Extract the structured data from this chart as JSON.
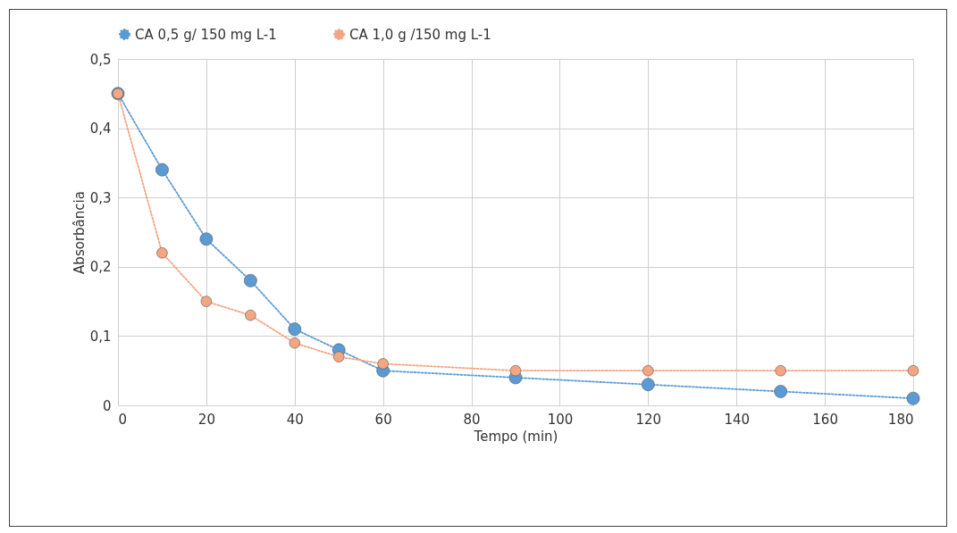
{
  "chart_data": {
    "type": "line",
    "xlabel": "Tempo (min)",
    "ylabel": "Absorbância",
    "x": [
      0,
      10,
      20,
      30,
      40,
      50,
      60,
      90,
      120,
      150,
      180
    ],
    "series": [
      {
        "name": "CA 0,5 g/ 150 mg L-1",
        "color": "#5b9bd5",
        "values": [
          0.45,
          0.34,
          0.24,
          0.18,
          0.11,
          0.08,
          0.05,
          0.04,
          0.03,
          0.02,
          0.01
        ]
      },
      {
        "name": "CA 1,0 g /150 mg L-1",
        "color": "#f4a582",
        "values": [
          0.45,
          0.22,
          0.15,
          0.13,
          0.09,
          0.07,
          0.06,
          0.05,
          0.05,
          0.05,
          0.05
        ]
      }
    ],
    "xlim": [
      0,
      180
    ],
    "xticks": [
      0,
      20,
      40,
      60,
      80,
      100,
      120,
      140,
      160,
      180
    ],
    "ylim": [
      0,
      0.5
    ],
    "yticks": [
      0,
      {
        "value": 0.1,
        "label": "0,1"
      },
      {
        "value": 0.2,
        "label": "0,2"
      },
      {
        "value": 0.3,
        "label": "0,3"
      },
      {
        "value": 0.4,
        "label": "0,4"
      },
      {
        "value": 0.5,
        "label": "0,5"
      }
    ],
    "grid": true,
    "legend": "top",
    "marker": "circle",
    "line_style": "dotted"
  }
}
